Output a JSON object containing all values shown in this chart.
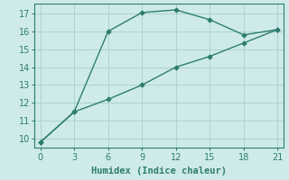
{
  "line1_x": [
    0,
    3,
    6,
    9,
    12,
    15,
    18,
    21
  ],
  "line1_y": [
    9.8,
    11.5,
    16.0,
    17.05,
    17.2,
    16.65,
    15.8,
    16.1
  ],
  "line2_x": [
    0,
    3,
    6,
    9,
    12,
    15,
    18,
    21
  ],
  "line2_y": [
    9.8,
    11.5,
    12.2,
    13.0,
    14.0,
    14.6,
    15.35,
    16.1
  ],
  "line_color": "#2e7d6e",
  "bg_color": "#ceeaea",
  "grid_color": "#aed4d0",
  "xlabel": "Humidex (Indice chaleur)",
  "xlim": [
    -0.5,
    21.5
  ],
  "ylim": [
    9.5,
    17.55
  ],
  "xticks": [
    0,
    3,
    6,
    9,
    12,
    15,
    18,
    21
  ],
  "yticks": [
    10,
    11,
    12,
    13,
    14,
    15,
    16,
    17
  ],
  "xlabel_fontsize": 7.5,
  "tick_fontsize": 7
}
